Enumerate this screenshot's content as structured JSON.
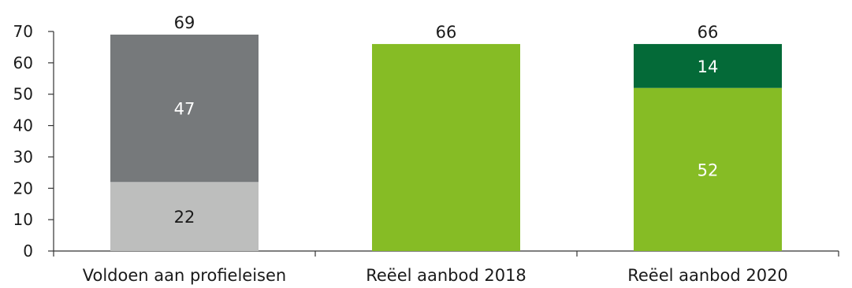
{
  "chart_data": {
    "type": "bar",
    "stacked": true,
    "title": "",
    "xlabel": "",
    "ylabel": "",
    "ylim": [
      0,
      70
    ],
    "yticks": [
      0,
      10,
      20,
      30,
      40,
      50,
      60,
      70
    ],
    "grid": false,
    "legend": "none",
    "categories": [
      "Voldoen aan profieleisen",
      "Reëel aanbod 2018",
      "Reëel aanbod 2020"
    ],
    "bars": [
      {
        "category": "Voldoen aan profieleisen",
        "total": 69,
        "segments": [
          {
            "value": 22,
            "color": "#bdbebd",
            "label_color": "#1a1a1a"
          },
          {
            "value": 47,
            "color": "#76797b",
            "label_color": "#ffffff"
          }
        ]
      },
      {
        "category": "Reëel aanbod 2018",
        "total": 66,
        "segments": [
          {
            "value": 66,
            "color": "#86bc25",
            "label_color": "#ffffff",
            "show_label": false
          }
        ]
      },
      {
        "category": "Reëel aanbod 2020",
        "total": 66,
        "segments": [
          {
            "value": 52,
            "color": "#86bc25",
            "label_color": "#ffffff"
          },
          {
            "value": 14,
            "color": "#046a38",
            "label_color": "#ffffff"
          }
        ]
      }
    ]
  }
}
